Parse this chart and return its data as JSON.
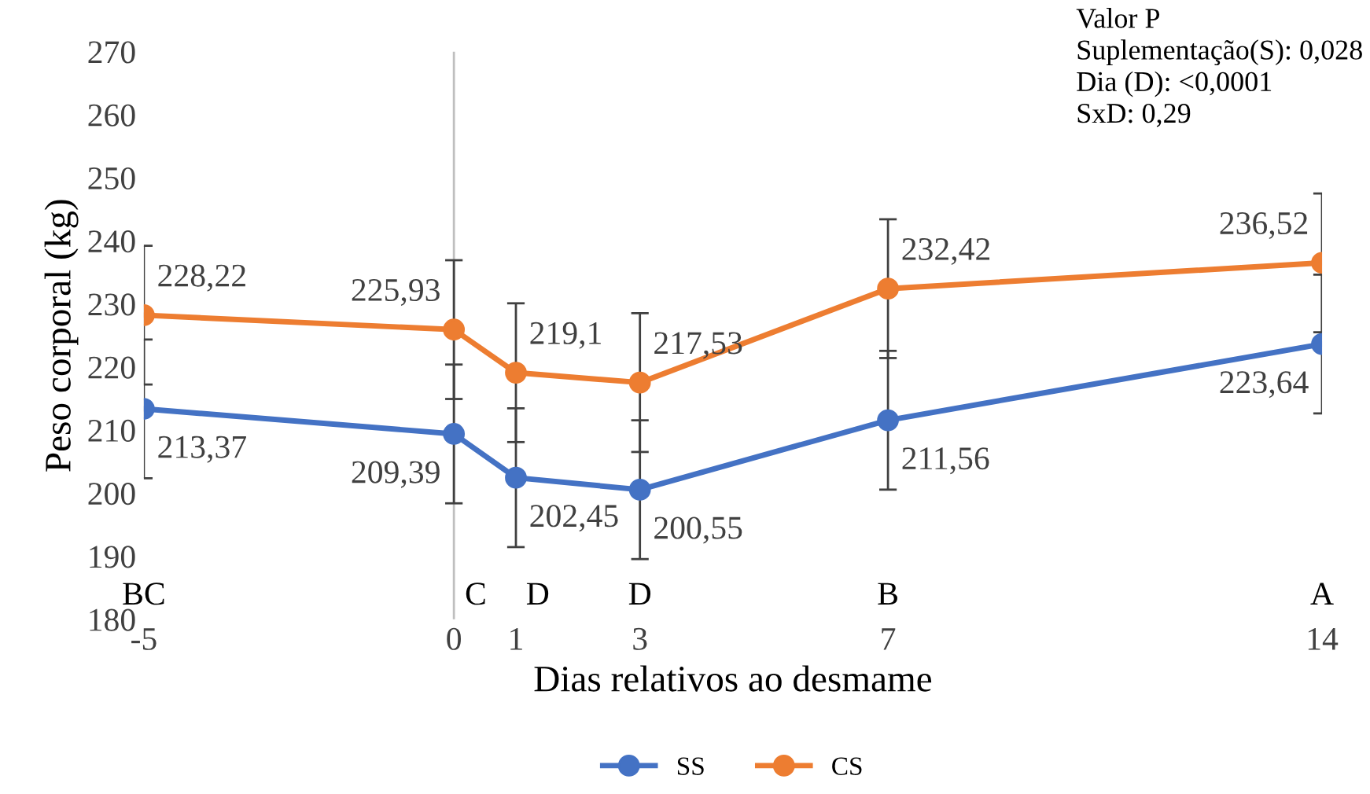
{
  "chart_data": {
    "type": "line",
    "xlabel": "Dias relativos ao desmame",
    "ylabel": "Peso corporal (kg)",
    "x": [
      -5,
      0,
      1,
      3,
      7,
      14
    ],
    "series": [
      {
        "name": "SS",
        "color": "#4472c4",
        "values": [
          213.37,
          209.39,
          202.45,
          200.55,
          211.56,
          223.64
        ],
        "errors": [
          11,
          11,
          11,
          11,
          11,
          11
        ],
        "value_labels": [
          "213,37",
          "209,39",
          "202,45",
          "200,55",
          "211,56",
          "223,64"
        ]
      },
      {
        "name": "CS",
        "color": "#ed7d31",
        "values": [
          228.22,
          225.93,
          219.1,
          217.53,
          232.42,
          236.52
        ],
        "errors": [
          11,
          11,
          11,
          11,
          11,
          11
        ],
        "value_labels": [
          "228,22",
          "225,93",
          "219,1",
          "217,53",
          "232,42",
          "236,52"
        ]
      }
    ],
    "xlim": [
      -5,
      14
    ],
    "xticks": [
      -5,
      0,
      1,
      3,
      7,
      14
    ],
    "ylim": [
      180,
      270
    ],
    "yticks": [
      180,
      190,
      200,
      210,
      220,
      230,
      240,
      250,
      260,
      270
    ],
    "ref_lines": [
      {
        "axis": "x",
        "value": 0,
        "color": "#bfbfbf"
      }
    ],
    "annotations": [
      "Valor P\nSuplementação(S): 0,028\nDia (D): <0,0001\nSxD: 0,29",
      "BC",
      "C",
      "D",
      "D",
      "B",
      "A"
    ],
    "grid": false,
    "legend": "bottom",
    "marker": "circle",
    "line_style": "solid"
  }
}
